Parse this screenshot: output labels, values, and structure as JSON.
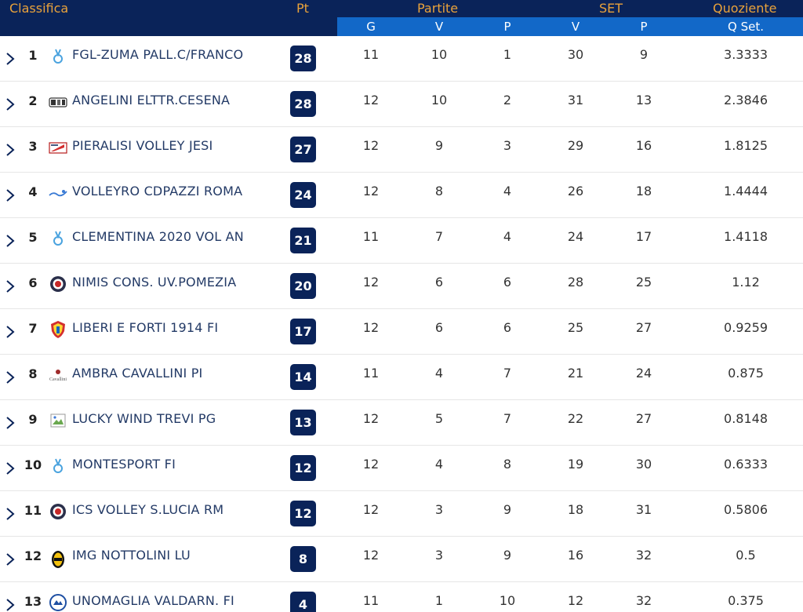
{
  "headers": {
    "classifica": "Classifica",
    "pt": "Pt",
    "partite": "Partite",
    "set": "SET",
    "quoziente": "Quoziente",
    "g": "G",
    "pv": "V",
    "pp": "P",
    "sv": "V",
    "sp": "P",
    "qset": "Q Set."
  },
  "colors": {
    "navy": "#0a2359",
    "blue": "#1268c8",
    "gold": "#e9a23b"
  },
  "rows": [
    {
      "pos": "1",
      "team": "FGL-ZUMA PALL.C/FRANCO",
      "logo": "ribbon-logo-icon",
      "pts": "28",
      "g": "11",
      "pv": "10",
      "pp": "1",
      "sv": "30",
      "sp": "9",
      "q": "3.3333"
    },
    {
      "pos": "2",
      "team": "ANGELINI ELTTR.CESENA",
      "logo": "team-crest-icon",
      "pts": "28",
      "g": "12",
      "pv": "10",
      "pp": "2",
      "sv": "31",
      "sp": "13",
      "q": "2.3846"
    },
    {
      "pos": "3",
      "team": "PIERALISI VOLLEY JESI",
      "logo": "flag-logo-icon",
      "pts": "27",
      "g": "12",
      "pv": "9",
      "pp": "3",
      "sv": "29",
      "sp": "16",
      "q": "1.8125"
    },
    {
      "pos": "4",
      "team": "VOLLEYRO CDPAZZI ROMA",
      "logo": "wave-logo-icon",
      "pts": "24",
      "g": "12",
      "pv": "8",
      "pp": "4",
      "sv": "26",
      "sp": "18",
      "q": "1.4444"
    },
    {
      "pos": "5",
      "team": "CLEMENTINA 2020 VOL AN",
      "logo": "ribbon-logo-icon",
      "pts": "21",
      "g": "11",
      "pv": "7",
      "pp": "4",
      "sv": "24",
      "sp": "17",
      "q": "1.4118"
    },
    {
      "pos": "6",
      "team": "NIMIS CONS. UV.POMEZIA",
      "logo": "round-badge-icon",
      "pts": "20",
      "g": "12",
      "pv": "6",
      "pp": "6",
      "sv": "28",
      "sp": "25",
      "q": "1.12"
    },
    {
      "pos": "7",
      "team": "LIBERI E FORTI 1914 FI",
      "logo": "shield-logo-icon",
      "pts": "17",
      "g": "12",
      "pv": "6",
      "pp": "6",
      "sv": "25",
      "sp": "27",
      "q": "0.9259"
    },
    {
      "pos": "8",
      "team": "AMBRA CAVALLINI PI",
      "logo": "text-logo-icon",
      "pts": "14",
      "g": "11",
      "pv": "4",
      "pp": "7",
      "sv": "21",
      "sp": "24",
      "q": "0.875"
    },
    {
      "pos": "9",
      "team": "LUCKY WIND TREVI PG",
      "logo": "broken-image-icon",
      "pts": "13",
      "g": "12",
      "pv": "5",
      "pp": "7",
      "sv": "22",
      "sp": "27",
      "q": "0.8148"
    },
    {
      "pos": "10",
      "team": "MONTESPORT FI",
      "logo": "ribbon-logo-icon",
      "pts": "12",
      "g": "12",
      "pv": "4",
      "pp": "8",
      "sv": "19",
      "sp": "30",
      "q": "0.6333"
    },
    {
      "pos": "11",
      "team": "ICS VOLLEY S.LUCIA RM",
      "logo": "round-badge-icon",
      "pts": "12",
      "g": "12",
      "pv": "3",
      "pp": "9",
      "sv": "18",
      "sp": "31",
      "q": "0.5806"
    },
    {
      "pos": "12",
      "team": "IMG NOTTOLINI LU",
      "logo": "oval-logo-icon",
      "pts": "8",
      "g": "12",
      "pv": "3",
      "pp": "9",
      "sv": "16",
      "sp": "32",
      "q": "0.5"
    },
    {
      "pos": "13",
      "team": "UNOMAGLIA VALDARN. FI",
      "logo": "circle-logo-icon",
      "pts": "4",
      "g": "11",
      "pv": "1",
      "pp": "10",
      "sv": "12",
      "sp": "32",
      "q": "0.375"
    }
  ]
}
